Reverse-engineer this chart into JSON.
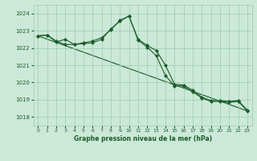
{
  "title": "Graphe pression niveau de la mer (hPa)",
  "bg_color": "#cce8d8",
  "grid_color": "#99ccb0",
  "line_color": "#1a5c2a",
  "xlim": [
    -0.5,
    23.5
  ],
  "ylim": [
    1017.5,
    1024.5
  ],
  "yticks": [
    1018,
    1019,
    1020,
    1021,
    1022,
    1023,
    1024
  ],
  "xticks": [
    0,
    1,
    2,
    3,
    4,
    5,
    6,
    7,
    8,
    9,
    10,
    11,
    12,
    13,
    14,
    15,
    16,
    17,
    18,
    19,
    20,
    21,
    22,
    23
  ],
  "line1_x": [
    0,
    1,
    2,
    3,
    4,
    5,
    6,
    7,
    8,
    9,
    10,
    11,
    12,
    13,
    14,
    15,
    16,
    17,
    18,
    19,
    20,
    21,
    22,
    23
  ],
  "line1_y": [
    1022.7,
    1022.75,
    1022.35,
    1022.5,
    1022.2,
    1022.3,
    1022.4,
    1022.6,
    1023.05,
    1023.6,
    1023.85,
    1022.5,
    1022.15,
    1021.85,
    1021.0,
    1019.9,
    1019.85,
    1019.55,
    1019.15,
    1018.95,
    1018.95,
    1018.9,
    1018.95,
    1018.4
  ],
  "line2_x": [
    0,
    1,
    2,
    3,
    4,
    5,
    6,
    7,
    8,
    9,
    10,
    11,
    12,
    13,
    14,
    15,
    16,
    17,
    18,
    19,
    20,
    21,
    22,
    23
  ],
  "line2_y": [
    1022.7,
    1022.75,
    1022.4,
    1022.2,
    1022.2,
    1022.25,
    1022.3,
    1022.5,
    1023.1,
    1023.55,
    1023.85,
    1022.45,
    1022.05,
    1021.55,
    1020.4,
    1019.8,
    1019.8,
    1019.45,
    1019.1,
    1018.9,
    1018.9,
    1018.85,
    1018.9,
    1018.35
  ],
  "line3_x": [
    0,
    23
  ],
  "line3_y": [
    1022.7,
    1018.35
  ]
}
